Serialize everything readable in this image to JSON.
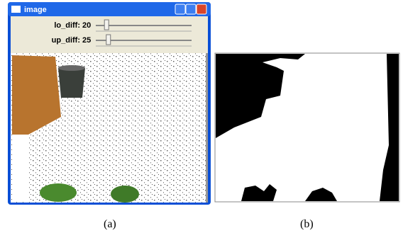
{
  "window": {
    "title": "image"
  },
  "sliders": [
    {
      "label": "lo_diff:",
      "value": 20
    },
    {
      "label": "up_diff:",
      "value": 25
    }
  ],
  "captions": [
    "(a)",
    "(b)"
  ]
}
